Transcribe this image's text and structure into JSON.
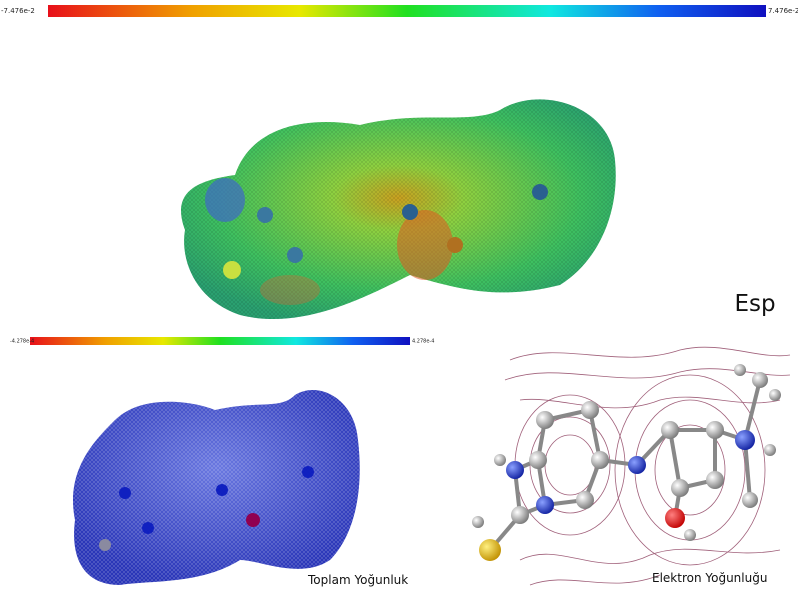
{
  "esp_panel": {
    "scale_min": "-7.476e-2",
    "scale_max": "7.476e-2",
    "label": "Esp"
  },
  "total_density_panel": {
    "scale_min": "-4.278e-4",
    "scale_max": "4.278e-4",
    "label": "Toplam Yoğunluk"
  },
  "electron_density_panel": {
    "label": "Elektron Yoğunluğu"
  }
}
